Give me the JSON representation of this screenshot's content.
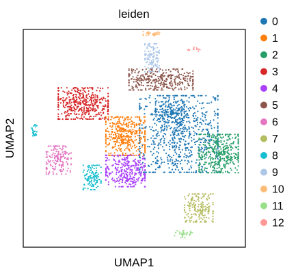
{
  "chart_data": {
    "type": "scatter",
    "title": "leiden",
    "xlabel": "UMAP1",
    "ylabel": "UMAP2",
    "xlim": [
      0,
      100
    ],
    "ylim": [
      0,
      100
    ],
    "grid": false,
    "ticks": false,
    "legend_position": "right",
    "series": [
      {
        "name": "0",
        "color": "#1f77b4",
        "clusters": [
          {
            "cx": 70,
            "cy": 52,
            "sx": 11,
            "sy": 11,
            "n": 750
          },
          {
            "cx": 66,
            "cy": 62,
            "sx": 4,
            "sy": 3,
            "n": 120
          }
        ]
      },
      {
        "name": "1",
        "color": "#ff7f0e",
        "clusters": [
          {
            "cx": 46,
            "cy": 51,
            "sx": 5.5,
            "sy": 5.5,
            "n": 420
          }
        ]
      },
      {
        "name": "2",
        "color": "#279e68",
        "clusters": [
          {
            "cx": 88,
            "cy": 43,
            "sx": 5.5,
            "sy": 5.5,
            "n": 380
          }
        ]
      },
      {
        "name": "3",
        "color": "#d62728",
        "clusters": [
          {
            "cx": 27,
            "cy": 66,
            "sx": 7,
            "sy": 4.5,
            "n": 420
          }
        ]
      },
      {
        "name": "4",
        "color": "#aa40fc",
        "clusters": [
          {
            "cx": 46,
            "cy": 35,
            "sx": 5.5,
            "sy": 4.5,
            "n": 320
          }
        ]
      },
      {
        "name": "5",
        "color": "#8c564b",
        "clusters": [
          {
            "cx": 62,
            "cy": 77,
            "sx": 9,
            "sy": 3,
            "n": 330
          }
        ]
      },
      {
        "name": "6",
        "color": "#e377c2",
        "clusters": [
          {
            "cx": 16,
            "cy": 40,
            "sx": 3.5,
            "sy": 4,
            "n": 160
          }
        ]
      },
      {
        "name": "7",
        "color": "#b5bd61",
        "clusters": [
          {
            "cx": 79,
            "cy": 18,
            "sx": 4,
            "sy": 4,
            "n": 180
          }
        ]
      },
      {
        "name": "8",
        "color": "#17becf",
        "clusters": [
          {
            "cx": 31,
            "cy": 32,
            "sx": 2.5,
            "sy": 3.5,
            "n": 110
          },
          {
            "cx": 5,
            "cy": 53,
            "sx": 0.7,
            "sy": 2,
            "n": 25
          }
        ]
      },
      {
        "name": "9",
        "color": "#aec7e8",
        "clusters": [
          {
            "cx": 58,
            "cy": 87,
            "sx": 2,
            "sy": 4,
            "n": 110
          }
        ]
      },
      {
        "name": "10",
        "color": "#ffbb78",
        "clusters": [
          {
            "cx": 58,
            "cy": 98,
            "sx": 2.5,
            "sy": 0.6,
            "n": 35
          }
        ]
      },
      {
        "name": "11",
        "color": "#98df8a",
        "clusters": [
          {
            "cx": 72,
            "cy": 6,
            "sx": 2.5,
            "sy": 1,
            "n": 30
          }
        ]
      },
      {
        "name": "12",
        "color": "#ff9896",
        "clusters": [
          {
            "cx": 77,
            "cy": 91,
            "sx": 1.8,
            "sy": 0.6,
            "n": 12
          }
        ]
      }
    ]
  }
}
